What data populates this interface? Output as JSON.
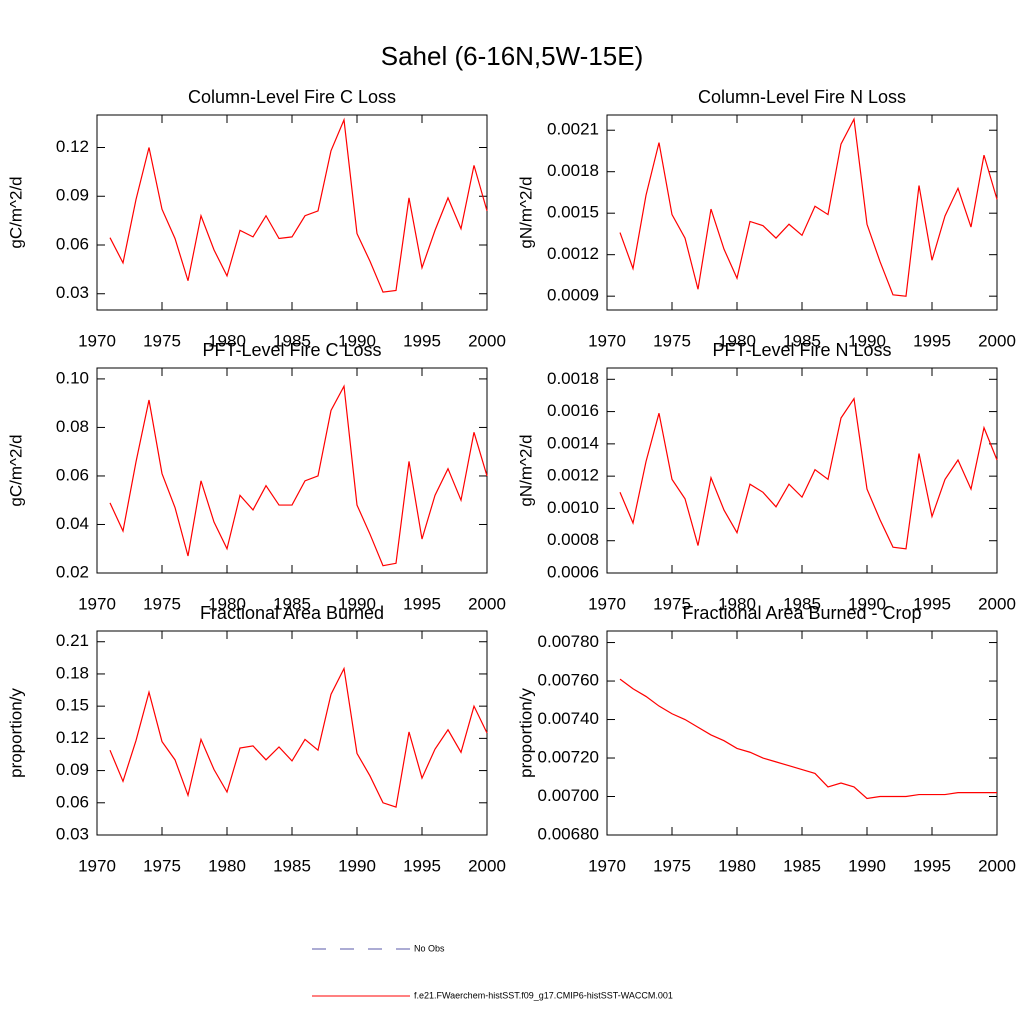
{
  "title": "Sahel (6-16N,5W-15E)",
  "legend": [
    {
      "name": "No Obs",
      "color": "#5a5aa8",
      "style": "dashed"
    }
  ],
  "chart_data": [
    {
      "type": "line",
      "title": "Column-Level Fire C Loss",
      "ylabel": "gC/m^2/d",
      "x": [
        1971,
        1972,
        1973,
        1974,
        1975,
        1976,
        1977,
        1978,
        1979,
        1980,
        1981,
        1982,
        1983,
        1984,
        1985,
        1986,
        1987,
        1988,
        1989,
        1990,
        1991,
        1992,
        1993,
        1994,
        1995,
        1996,
        1997,
        1998,
        1999,
        2000
      ],
      "series": [
        {
          "name": "f.e21.FWaerchem-histSST.f09_g17.CMIP6-histSST-WACCM.001",
          "color": "#ff0000",
          "values": [
            0.0645,
            0.049,
            0.088,
            0.12,
            0.082,
            0.064,
            0.038,
            0.078,
            0.057,
            0.041,
            0.069,
            0.065,
            0.078,
            0.064,
            0.065,
            0.078,
            0.081,
            0.118,
            0.137,
            0.067,
            0.05,
            0.031,
            0.032,
            0.089,
            0.046,
            0.069,
            0.089,
            0.07,
            0.109,
            0.081
          ]
        }
      ],
      "xlim": [
        1970,
        2000
      ],
      "xticks": [
        1970,
        1975,
        1980,
        1985,
        1990,
        1995,
        2000
      ],
      "ylim": [
        0.02,
        0.14
      ],
      "yticks": [
        0.03,
        0.06,
        0.09,
        0.12
      ]
    },
    {
      "type": "line",
      "title": "Column-Level Fire N Loss",
      "ylabel": "gN/m^2/d",
      "x": [
        1971,
        1972,
        1973,
        1974,
        1975,
        1976,
        1977,
        1978,
        1979,
        1980,
        1981,
        1982,
        1983,
        1984,
        1985,
        1986,
        1987,
        1988,
        1989,
        1990,
        1991,
        1992,
        1993,
        1994,
        1995,
        1996,
        1997,
        1998,
        1999,
        2000
      ],
      "series": [
        {
          "name": "f.e21.FWaerchem-histSST.f09_g17.CMIP6-histSST-WACCM.001",
          "color": "#ff0000",
          "values": [
            0.00136,
            0.0011,
            0.00163,
            0.00201,
            0.00149,
            0.00132,
            0.00095,
            0.00153,
            0.00124,
            0.00103,
            0.00144,
            0.00141,
            0.00132,
            0.00142,
            0.00134,
            0.00155,
            0.00149,
            0.002,
            0.00218,
            0.00142,
            0.00115,
            0.00091,
            0.0009,
            0.0017,
            0.00116,
            0.00148,
            0.00168,
            0.0014,
            0.00192,
            0.0016
          ]
        }
      ],
      "xlim": [
        1970,
        2000
      ],
      "xticks": [
        1970,
        1975,
        1980,
        1985,
        1990,
        1995,
        2000
      ],
      "ylim": [
        0.0008,
        0.00221
      ],
      "yticks": [
        0.0009,
        0.0012,
        0.0015,
        0.0018,
        0.0021
      ]
    },
    {
      "type": "line",
      "title": "PFT-Level Fire C Loss",
      "ylabel": "gC/m^2/d",
      "x": [
        1971,
        1972,
        1973,
        1974,
        1975,
        1976,
        1977,
        1978,
        1979,
        1980,
        1981,
        1982,
        1983,
        1984,
        1985,
        1986,
        1987,
        1988,
        1989,
        1990,
        1991,
        1992,
        1993,
        1994,
        1995,
        1996,
        1997,
        1998,
        1999,
        2000
      ],
      "series": [
        {
          "name": "f.e21.FWaerchem-histSST.f09_g17.CMIP6-histSST-WACCM.001",
          "color": "#ff0000",
          "values": [
            0.0489,
            0.0373,
            0.0658,
            0.0913,
            0.061,
            0.047,
            0.027,
            0.058,
            0.041,
            0.03,
            0.052,
            0.046,
            0.056,
            0.048,
            0.048,
            0.058,
            0.06,
            0.087,
            0.097,
            0.048,
            0.036,
            0.023,
            0.024,
            0.066,
            0.034,
            0.052,
            0.063,
            0.05,
            0.078,
            0.06
          ]
        }
      ],
      "xlim": [
        1970,
        2000
      ],
      "xticks": [
        1970,
        1975,
        1980,
        1985,
        1990,
        1995,
        2000
      ],
      "ylim": [
        0.02,
        0.1045
      ],
      "yticks": [
        0.02,
        0.04,
        0.06,
        0.08,
        {
          "value": 0.1,
          "label": "0.10"
        }
      ]
    },
    {
      "type": "line",
      "title": "PFT-Level Fire N Loss",
      "ylabel": "gN/m^2/d",
      "x": [
        1971,
        1972,
        1973,
        1974,
        1975,
        1976,
        1977,
        1978,
        1979,
        1980,
        1981,
        1982,
        1983,
        1984,
        1985,
        1986,
        1987,
        1988,
        1989,
        1990,
        1991,
        1992,
        1993,
        1994,
        1995,
        1996,
        1997,
        1998,
        1999,
        2000
      ],
      "series": [
        {
          "name": "f.e21.FWaerchem-histSST.f09_g17.CMIP6-histSST-WACCM.001",
          "color": "#ff0000",
          "values": [
            0.0011,
            0.00091,
            0.00129,
            0.00159,
            0.00118,
            0.00106,
            0.00077,
            0.00119,
            0.00099,
            0.00085,
            0.00115,
            0.0011,
            0.00101,
            0.00115,
            0.00107,
            0.00124,
            0.00118,
            0.00156,
            0.00168,
            0.00112,
            0.00093,
            0.00076,
            0.00075,
            0.00134,
            0.00095,
            0.00118,
            0.0013,
            0.00112,
            0.0015,
            0.0013
          ]
        }
      ],
      "xlim": [
        1970,
        2000
      ],
      "xticks": [
        1970,
        1975,
        1980,
        1985,
        1990,
        1995,
        2000
      ],
      "ylim": [
        0.0006,
        0.00187
      ],
      "yticks": [
        0.0006,
        0.0008,
        {
          "value": 0.001,
          "label": "0.0010"
        },
        0.0012,
        0.0014,
        0.0016,
        0.0018
      ]
    },
    {
      "type": "line",
      "title": "Fractional Area Burned",
      "ylabel": "proportion/y",
      "x": [
        1971,
        1972,
        1973,
        1974,
        1975,
        1976,
        1977,
        1978,
        1979,
        1980,
        1981,
        1982,
        1983,
        1984,
        1985,
        1986,
        1987,
        1988,
        1989,
        1990,
        1991,
        1992,
        1993,
        1994,
        1995,
        1996,
        1997,
        1998,
        1999,
        2000
      ],
      "series": [
        {
          "name": "f.e21.FWaerchem-histSST.f09_g17.CMIP6-histSST-WACCM.001",
          "color": "#ff0000",
          "values": [
            0.109,
            0.08,
            0.118,
            0.163,
            0.117,
            0.1,
            0.067,
            0.119,
            0.091,
            0.07,
            0.111,
            0.113,
            0.1,
            0.112,
            0.099,
            0.119,
            0.109,
            0.161,
            0.185,
            0.106,
            0.085,
            0.06,
            0.056,
            0.126,
            0.083,
            0.11,
            0.128,
            0.107,
            0.15,
            0.125
          ]
        }
      ],
      "xlim": [
        1970,
        2000
      ],
      "xticks": [
        1970,
        1975,
        1980,
        1985,
        1990,
        1995,
        2000
      ],
      "ylim": [
        0.03,
        0.22
      ],
      "yticks": [
        0.03,
        0.06,
        0.09,
        {
          "value": 0.12,
          "label": "0.12"
        },
        0.15,
        0.18,
        0.21
      ]
    },
    {
      "type": "line",
      "title": "Fractional Area Burned - Crop",
      "ylabel": "proportion/y",
      "x": [
        1971,
        1972,
        1973,
        1974,
        1975,
        1976,
        1977,
        1978,
        1979,
        1980,
        1981,
        1982,
        1983,
        1984,
        1985,
        1986,
        1987,
        1988,
        1989,
        1990,
        1991,
        1992,
        1993,
        1994,
        1995,
        1996,
        1997,
        1998,
        1999,
        2000
      ],
      "series": [
        {
          "name": "f.e21.FWaerchem-histSST.f09_g17.CMIP6-histSST-WACCM.001",
          "color": "#ff0000",
          "values": [
            0.00761,
            0.00756,
            0.00752,
            0.00747,
            0.00743,
            0.0074,
            0.00736,
            0.00732,
            0.00729,
            0.00725,
            0.00723,
            0.0072,
            0.00718,
            0.00716,
            0.00714,
            0.00712,
            0.00705,
            0.00707,
            0.00705,
            0.00699,
            0.007,
            0.007,
            0.007,
            0.00701,
            0.00701,
            0.00701,
            0.00702,
            0.00702,
            0.00702,
            0.00702
          ]
        }
      ],
      "xlim": [
        1970,
        2000
      ],
      "xticks": [
        1970,
        1975,
        1980,
        1985,
        1990,
        1995,
        2000
      ],
      "ylim": [
        0.0068,
        0.00786
      ],
      "yticks": [
        {
          "value": 0.0068,
          "label": "0.00680"
        },
        {
          "value": 0.007,
          "label": "0.00700"
        },
        {
          "value": 0.0072,
          "label": "0.00720"
        },
        {
          "value": 0.0074,
          "label": "0.00740"
        },
        {
          "value": 0.0076,
          "label": "0.00760"
        },
        {
          "value": 0.0078,
          "label": "0.00780"
        }
      ]
    }
  ]
}
